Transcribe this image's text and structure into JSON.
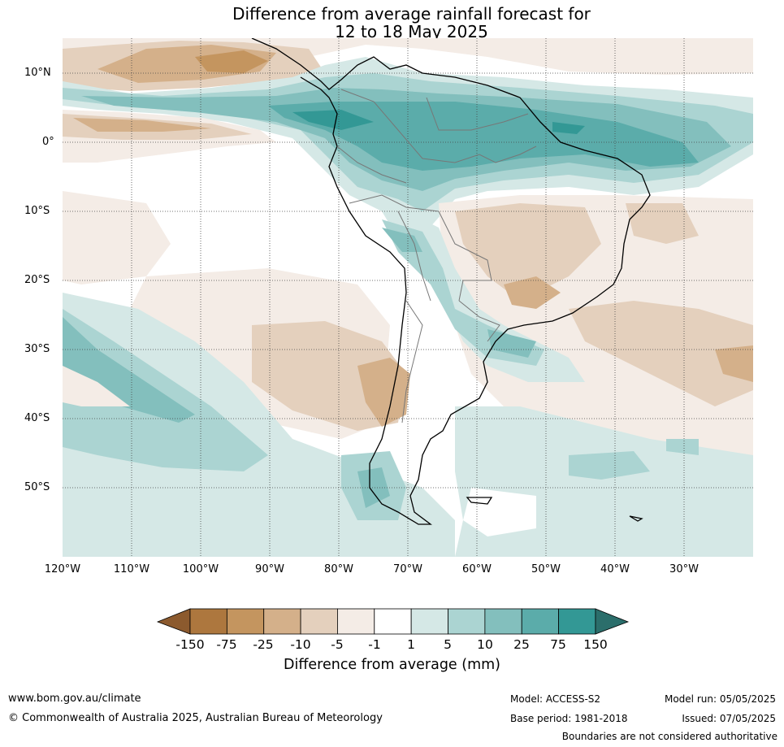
{
  "title_line1": "Difference from average rainfall forecast for",
  "title_line2": "12 to 18 May 2025",
  "map": {
    "lat_labels": [
      "10°N",
      "0°",
      "10°S",
      "20°S",
      "30°S",
      "40°S",
      "50°S"
    ],
    "lon_labels": [
      "120°W",
      "110°W",
      "100°W",
      "90°W",
      "80°W",
      "70°W",
      "60°W",
      "50°W",
      "40°W",
      "30°W"
    ],
    "extent": {
      "lon_min": -120,
      "lon_max": -20,
      "lat_min": -60,
      "lat_max": 15
    }
  },
  "colorbar": {
    "title": "Difference from average (mm)",
    "ticks": [
      "-150",
      "-75",
      "-25",
      "-10",
      "-5",
      "-1",
      "1",
      "5",
      "10",
      "25",
      "75",
      "150"
    ],
    "colors": [
      "#8c5a2e",
      "#ad773e",
      "#c4955f",
      "#d4b08a",
      "#e4d0bd",
      "#f4ece6",
      "#ffffff",
      "#d5e8e6",
      "#abd4d2",
      "#83bfbd",
      "#5bacaa",
      "#339895",
      "#2b6e6b"
    ]
  },
  "footer": {
    "url": "www.bom.gov.au/climate",
    "copyright": "© Commonwealth of Australia 2025, Australian Bureau of Meteorology",
    "model": "Model: ACCESS-S2",
    "base_period": "Base period: 1981-2018",
    "model_run": "Model run: 05/05/2025",
    "issued": "Issued: 07/05/2025",
    "disclaimer": "Boundaries are not considered authoritative"
  }
}
